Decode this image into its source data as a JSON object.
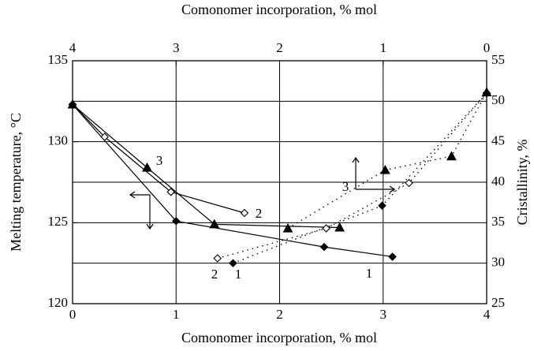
{
  "chart_data": {
    "type": "line",
    "x_label": "Comonomer incorporation, % mol",
    "x2_label": "Comonomer incorporation, % mol",
    "y_label": "Melting temperature, °C",
    "y2_label": "Cristallinity, %",
    "xlim": [
      0,
      4
    ],
    "xticks": [
      0,
      1,
      2,
      3,
      4
    ],
    "x2lim": [
      4,
      0
    ],
    "x2ticks": [
      4,
      3,
      2,
      1,
      0
    ],
    "ylim": [
      120,
      135
    ],
    "yticks": [
      120,
      125,
      130,
      135
    ],
    "y2lim": [
      25,
      55
    ],
    "y2ticks": [
      25,
      30,
      35,
      40,
      45,
      50,
      55
    ],
    "grid": true,
    "series": [
      {
        "marker": "filled-diamond",
        "color": "#000000",
        "axis": "y",
        "line": "solid",
        "x": [
          0,
          1,
          2.43,
          3.09
        ],
        "values": [
          132.3,
          125.1,
          123.5,
          122.9
        ]
      },
      {
        "marker": "open-diamond",
        "color": "#000000",
        "axis": "y",
        "line": "solid",
        "x": [
          0,
          0.31,
          0.95,
          1.66
        ],
        "values": [
          132.3,
          130.3,
          126.9,
          125.6
        ]
      },
      {
        "marker": "filled-triangle",
        "color": "#000000",
        "axis": "y",
        "line": "solid",
        "x": [
          0,
          0.72,
          1.37,
          2.58
        ],
        "values": [
          132.3,
          128.4,
          124.9,
          124.7
        ]
      },
      {
        "marker": "filled-diamond",
        "color": "#000000",
        "axis": "y2",
        "line": "dotted",
        "x": [
          1.55,
          2.99,
          4
        ],
        "values": [
          30,
          37.1,
          51
        ]
      },
      {
        "marker": "open-diamond",
        "color": "#000000",
        "axis": "y2",
        "line": "dotted",
        "x": [
          1.4,
          2.45,
          3.25,
          4
        ],
        "values": [
          30.6,
          34.3,
          39.9,
          51
        ]
      },
      {
        "marker": "filled-triangle",
        "color": "#000000",
        "axis": "y2",
        "line": "dotted",
        "x": [
          2.08,
          3.02,
          3.66,
          4
        ],
        "values": [
          34.3,
          41.5,
          43.2,
          51.1
        ]
      }
    ],
    "annotations": [
      "3",
      "2",
      "1",
      "2",
      "1",
      "3"
    ]
  }
}
